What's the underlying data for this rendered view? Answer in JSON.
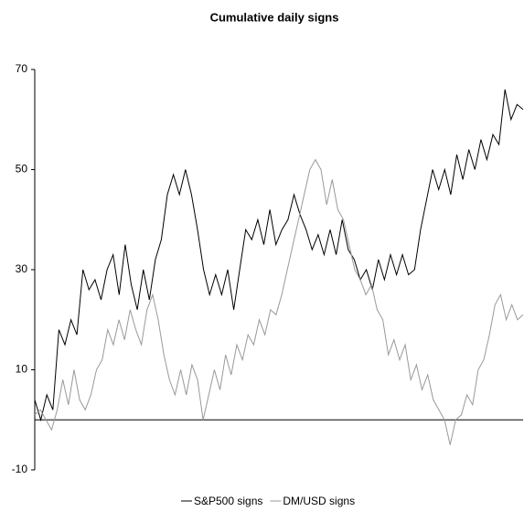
{
  "chart_data": {
    "type": "line",
    "title": "Cumulative daily signs",
    "ylim": [
      -10,
      70
    ],
    "yticks": [
      -10,
      10,
      30,
      50,
      70
    ],
    "zero_line": true,
    "series": [
      {
        "name": "S&P500 signs",
        "color": "#000000",
        "values": [
          4,
          0,
          5,
          2,
          18,
          15,
          20,
          17,
          30,
          26,
          28,
          24,
          30,
          33,
          25,
          35,
          27,
          22,
          30,
          24,
          32,
          36,
          45,
          49,
          45,
          50,
          45,
          38,
          30,
          25,
          29,
          25,
          30,
          22,
          30,
          38,
          36,
          40,
          35,
          42,
          35,
          38,
          40,
          45,
          41,
          38,
          34,
          37,
          33,
          38,
          33,
          40,
          34,
          32,
          28,
          30,
          26,
          32,
          28,
          33,
          29,
          33,
          29,
          30,
          38,
          44,
          50,
          46,
          50,
          45,
          53,
          48,
          54,
          50,
          56,
          52,
          57,
          55,
          66,
          60,
          63,
          62
        ]
      },
      {
        "name": "DM/USD signs",
        "color": "#999999",
        "values": [
          1,
          2,
          0,
          -2,
          2,
          8,
          3,
          10,
          4,
          2,
          5,
          10,
          12,
          18,
          15,
          20,
          16,
          22,
          18,
          15,
          22,
          25,
          20,
          13,
          8,
          5,
          10,
          5,
          11,
          8,
          0,
          5,
          10,
          6,
          13,
          9,
          15,
          12,
          17,
          15,
          20,
          17,
          22,
          21,
          25,
          30,
          35,
          40,
          45,
          50,
          52,
          50,
          43,
          48,
          42,
          40,
          35,
          30,
          28,
          25,
          27,
          22,
          20,
          13,
          16,
          12,
          15,
          8,
          11,
          6,
          9,
          4,
          2,
          0,
          -5,
          0,
          1,
          5,
          3,
          10,
          12,
          17,
          23,
          25,
          20,
          23,
          20,
          21
        ]
      }
    ]
  }
}
